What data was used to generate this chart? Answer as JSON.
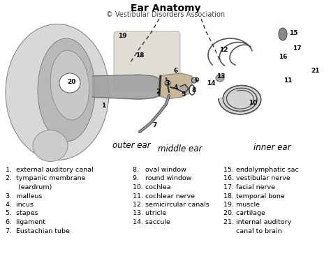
{
  "title": "Ear Anatomy",
  "subtitle": "© Vestibular Disorders Association",
  "background_color": "#ffffff",
  "title_fontsize": 10,
  "subtitle_fontsize": 7,
  "legend_items_col1": [
    "1.  external auditory canal",
    "2.  tympanic membrane",
    "      (eardrum)",
    "3.  malleus",
    "4.  incus",
    "5.  stapes",
    "6.  ligament",
    "7.  Eustachian tube"
  ],
  "legend_items_col2": [
    "8.   oval window",
    "9.   round window",
    "10. cochlea",
    "11. cochlear nerve",
    "12. semicircular canals",
    "13. utricle",
    "14. saccule"
  ],
  "legend_items_col3": [
    "15. endolymphatic sac",
    "16. vestibular nerve",
    "17. facial nerve",
    "18. temporal bone",
    "19. muscle",
    "20. cartilage",
    "21. internal auditory",
    "      canal to brain"
  ],
  "label_outer_ear": "outer ear",
  "label_middle_ear": "middle ear",
  "label_inner_ear": "inner ear",
  "legend_fontsize": 6.8,
  "figsize": [
    4.74,
    3.87
  ],
  "dpi": 100
}
